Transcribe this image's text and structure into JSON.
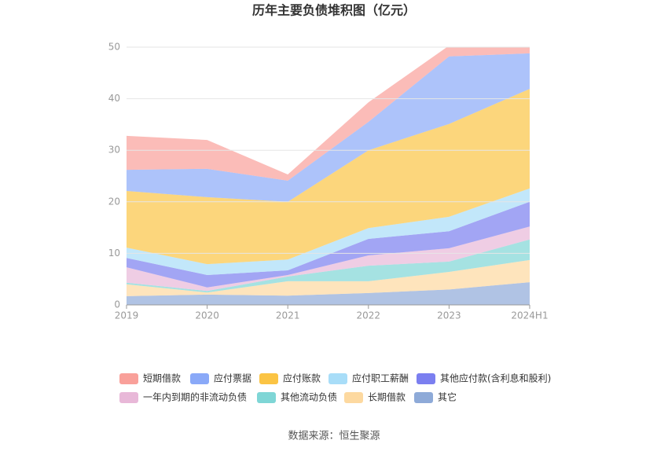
{
  "chart_data": {
    "type": "stacked-area",
    "title": "历年主要负债堆积图（亿元）",
    "source": "数据来源：恒生聚源",
    "categories": [
      "2019",
      "2020",
      "2021",
      "2022",
      "2023",
      "2024H1"
    ],
    "ylim": [
      0,
      50
    ],
    "yticks": [
      0,
      10,
      20,
      30,
      40,
      50
    ],
    "grid": true,
    "series": [
      {
        "name": "其它",
        "color": "#8eaad8",
        "values": [
          1.7,
          2.0,
          1.8,
          2.3,
          3.0,
          4.4
        ]
      },
      {
        "name": "长期借款",
        "color": "#fdd9a0",
        "values": [
          2.3,
          0.4,
          2.8,
          2.3,
          3.4,
          4.3
        ]
      },
      {
        "name": "其他流动负债",
        "color": "#7fd6d6",
        "values": [
          0.3,
          0.3,
          0.9,
          3.0,
          2.0,
          4.0
        ]
      },
      {
        "name": "一年内到期的非流动负债",
        "color": "#e8b8d8",
        "values": [
          3.0,
          0.7,
          0.3,
          2.0,
          2.6,
          2.5
        ]
      },
      {
        "name": "其他应付款(含利息和股利)",
        "color": "#7b7ff0",
        "values": [
          1.8,
          2.4,
          0.9,
          3.2,
          3.3,
          4.8
        ]
      },
      {
        "name": "应付职工薪酬",
        "color": "#a8ddf8",
        "values": [
          2.0,
          2.1,
          2.1,
          2.1,
          2.8,
          2.6
        ]
      },
      {
        "name": "应付账款",
        "color": "#fbc444",
        "values": [
          11.0,
          13.0,
          11.2,
          15.1,
          18.0,
          19.3
        ]
      },
      {
        "name": "应付票据",
        "color": "#8aa9f8",
        "values": [
          4.1,
          5.5,
          4.1,
          5.5,
          13.1,
          6.9
        ]
      },
      {
        "name": "短期借款",
        "color": "#f9a09a",
        "values": [
          6.6,
          5.6,
          1.2,
          3.8,
          2.1,
          1.2
        ]
      }
    ]
  }
}
